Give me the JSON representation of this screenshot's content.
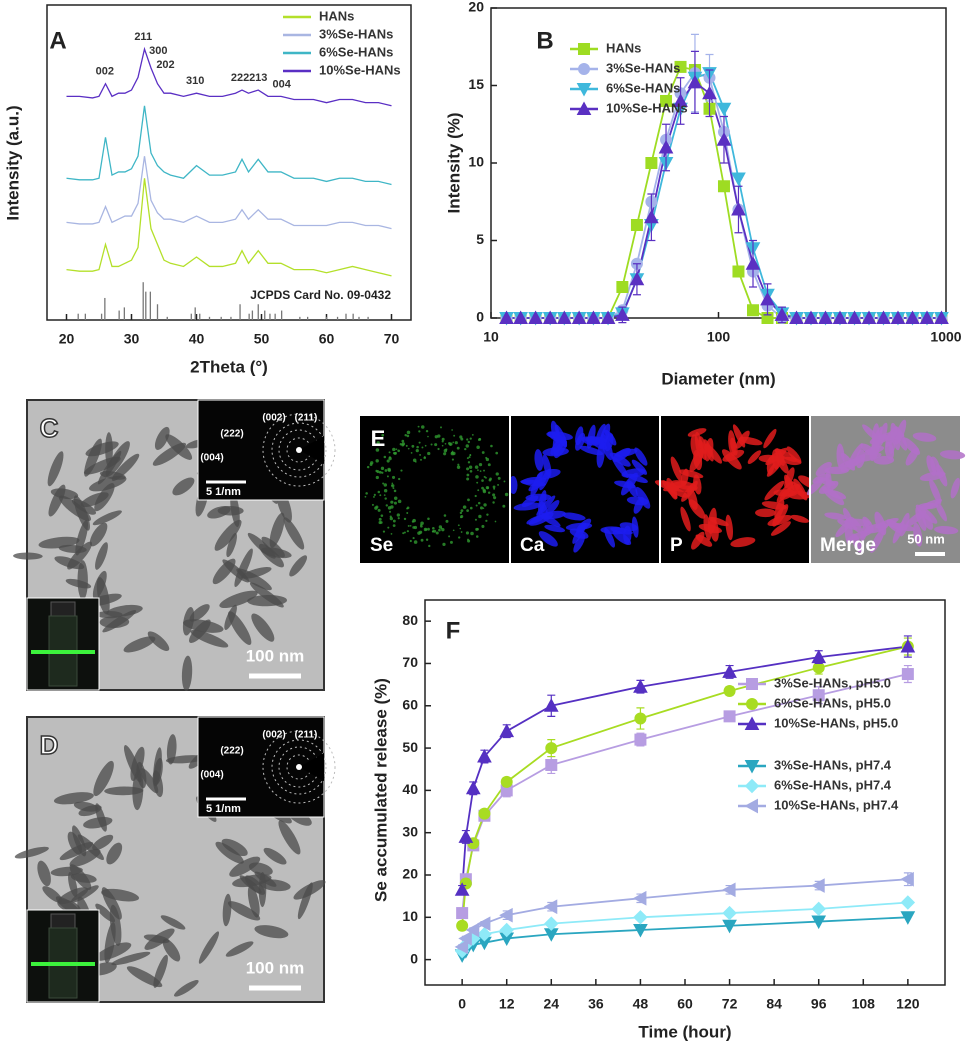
{
  "chart_data": [
    {
      "type": "line",
      "panel_label": "A",
      "xlabel": "2Theta (°)",
      "ylabel": "Intensity (a.u.)",
      "xlim": [
        17,
        73
      ],
      "xticks": [
        20,
        30,
        40,
        50,
        60,
        70
      ],
      "ylim": [
        0,
        100
      ],
      "x": [
        20,
        22,
        24,
        25,
        26,
        27,
        28,
        29,
        30,
        31,
        32,
        33,
        34,
        35,
        36,
        38,
        40,
        42,
        44,
        46,
        47,
        48,
        49.5,
        51,
        53,
        55,
        58,
        60,
        62,
        64,
        66,
        68,
        70
      ],
      "series": [
        {
          "name": "HANs",
          "color": "#b4e02a",
          "values": [
            16,
            15.5,
            15.5,
            16,
            24,
            17,
            17,
            18,
            19,
            23,
            45,
            29,
            24,
            19,
            18,
            17,
            20,
            17,
            17,
            18,
            22,
            18,
            22,
            18,
            18,
            16,
            16,
            15,
            16,
            17,
            16,
            15,
            14
          ]
        },
        {
          "name": "3%Se-HANs",
          "color": "#a9b6e2",
          "values": [
            31,
            30.5,
            30.5,
            31,
            36,
            31,
            32,
            33,
            33,
            37,
            52,
            38,
            34,
            32,
            32,
            31,
            33,
            31,
            31,
            32,
            35,
            32,
            35,
            32,
            32,
            30,
            30,
            30,
            31,
            31,
            30,
            30,
            29
          ]
        },
        {
          "name": "6%Se-HANs",
          "color": "#3fb6c6",
          "values": [
            45,
            44.5,
            44.5,
            45,
            58,
            46,
            47,
            47,
            48,
            52,
            68,
            53,
            49,
            47,
            46,
            45,
            49,
            46,
            46,
            47,
            51,
            47,
            51,
            47,
            47,
            45,
            45,
            44,
            45,
            45,
            44,
            44,
            43
          ]
        },
        {
          "name": "10%Se-HANs",
          "color": "#5a2fc4",
          "values": [
            71,
            71,
            70.5,
            71,
            75,
            71,
            72,
            72,
            73,
            77,
            86,
            80,
            75,
            72,
            72,
            71,
            72,
            71,
            71,
            72,
            73,
            72,
            73,
            71,
            71,
            70,
            70,
            69,
            70,
            70,
            69,
            69,
            68
          ]
        }
      ],
      "reference_peaks": {
        "x": [
          21.8,
          22.9,
          25.4,
          25.9,
          28.1,
          28.9,
          31.8,
          32.2,
          32.9,
          34.0,
          35.5,
          39.2,
          39.8,
          40.5,
          42.0,
          43.8,
          45.3,
          46.7,
          48.1,
          48.6,
          49.5,
          50.5,
          51.3,
          52.1,
          53.1,
          55.9,
          57.1,
          60.0,
          61.7,
          63.0,
          64.1,
          65.0,
          66.4
        ],
        "values": [
          2,
          2,
          2,
          7,
          3,
          4,
          12,
          9,
          9,
          5,
          1,
          2,
          4,
          2,
          1,
          1,
          1,
          5,
          2,
          3,
          5,
          3,
          2,
          2,
          3,
          1,
          1,
          1,
          1,
          2,
          2,
          1,
          1
        ]
      },
      "peak_labels": {
        "labels": [
          "002",
          "211",
          "300",
          "202",
          "310",
          "222",
          "213",
          "004"
        ],
        "x": [
          25.9,
          31.8,
          32.9,
          34.0,
          39.8,
          46.7,
          49.5,
          53.1
        ]
      },
      "annotation": "JCPDS Card No. 09-0432"
    },
    {
      "type": "line",
      "panel_label": "B",
      "xlabel": "Diameter (nm)",
      "ylabel": "Intensity (%)",
      "xscale": "log",
      "xlim": [
        10,
        1000
      ],
      "xticks": [
        10,
        100,
        1000
      ],
      "ylim": [
        0,
        20
      ],
      "yticks": [
        0,
        5,
        10,
        15,
        20
      ],
      "x": [
        11.7,
        13.5,
        15.7,
        18.2,
        21.0,
        24.4,
        28.2,
        32.7,
        37.8,
        43.8,
        50.7,
        58.8,
        68.1,
        78.8,
        91.3,
        105.7,
        122.4,
        141.8,
        164.2,
        190.1,
        220.2,
        255.0,
        295.3,
        342.0,
        396.1,
        458.7,
        531.2,
        615.1,
        712.4,
        825.0,
        955.4
      ],
      "series": [
        {
          "name": "HANs",
          "color": "#9edc22",
          "marker": "square",
          "values": [
            0,
            0,
            0,
            0,
            0,
            0,
            0,
            0,
            2,
            6,
            10,
            14,
            16.2,
            16,
            13.5,
            8.5,
            3,
            0.5,
            0,
            0,
            0,
            0,
            0,
            0,
            0,
            0,
            0,
            0,
            0,
            0,
            0
          ]
        },
        {
          "name": "3%Se-HANs",
          "color": "#a5b3ea",
          "marker": "circle",
          "values": [
            0,
            0,
            0,
            0,
            0,
            0,
            0,
            0,
            0.5,
            3.5,
            7.5,
            11.5,
            14.5,
            15.8,
            15.5,
            12,
            7,
            3,
            0.8,
            0,
            0,
            0,
            0,
            0,
            0,
            0,
            0,
            0,
            0,
            0,
            0
          ],
          "errors": [
            null,
            null,
            null,
            null,
            null,
            null,
            null,
            null,
            null,
            null,
            null,
            null,
            null,
            2.5,
            1.5,
            null,
            null,
            null,
            null,
            null,
            null,
            null,
            null,
            null,
            null,
            null,
            null,
            null,
            null,
            null,
            null
          ]
        },
        {
          "name": "6%Se-HANs",
          "color": "#3fb8dc",
          "marker": "triangle-down",
          "values": [
            0,
            0,
            0,
            0,
            0,
            0,
            0,
            0,
            0.3,
            2.5,
            6,
            10,
            13.5,
            15.5,
            15.8,
            13.5,
            9,
            4.5,
            1.5,
            0.3,
            0,
            0,
            0,
            0,
            0,
            0,
            0,
            0,
            0,
            0,
            0
          ]
        },
        {
          "name": "10%Se-HANs",
          "color": "#5a30c2",
          "marker": "triangle-up",
          "values": [
            0,
            0,
            0,
            0,
            0,
            0,
            0,
            0,
            0.2,
            2.5,
            6.5,
            11,
            14,
            15.2,
            14.5,
            11.5,
            7,
            3.5,
            1.2,
            0.2,
            0,
            0,
            0,
            0,
            0,
            0,
            0,
            0,
            0,
            0,
            0
          ],
          "errors": [
            null,
            null,
            null,
            null,
            null,
            null,
            null,
            null,
            0.5,
            1,
            1.5,
            1.5,
            1.5,
            2,
            1.5,
            1.5,
            1.5,
            1.5,
            1,
            0.5,
            null,
            null,
            null,
            null,
            null,
            null,
            null,
            null,
            null,
            null,
            null
          ]
        }
      ]
    },
    {
      "type": "line",
      "panel_label": "F",
      "xlabel": "Time (hour)",
      "ylabel": "Se accumulated release (%)",
      "xlim": [
        -10,
        130
      ],
      "xticks": [
        0,
        12,
        24,
        36,
        48,
        60,
        72,
        84,
        96,
        108,
        120
      ],
      "ylim": [
        -6,
        85
      ],
      "yticks": [
        0,
        10,
        20,
        30,
        40,
        50,
        60,
        70,
        80
      ],
      "x": [
        0,
        1,
        3,
        6,
        12,
        24,
        48,
        72,
        96,
        120
      ],
      "series": [
        {
          "name": "3%Se-HANs, pH5.0",
          "color": "#b79de2",
          "marker": "square",
          "values": [
            11,
            19,
            27,
            34,
            40,
            46,
            52,
            57.5,
            62.5,
            67.5
          ],
          "errors": [
            1,
            1,
            1,
            1,
            1.5,
            2,
            1.5,
            1,
            2,
            2
          ]
        },
        {
          "name": "6%Se-HANs, pH5.0",
          "color": "#a8dc22",
          "marker": "circle",
          "values": [
            8,
            18,
            27.5,
            34.5,
            42,
            50,
            57,
            63.5,
            69,
            74
          ],
          "errors": [
            1,
            1,
            1,
            1,
            1,
            2,
            2.5,
            1,
            1.5,
            2
          ]
        },
        {
          "name": "10%Se-HANs, pH5.0",
          "color": "#5530c2",
          "marker": "triangle-up",
          "values": [
            16.5,
            29,
            40.5,
            48,
            54,
            60,
            64.5,
            68,
            71.5,
            74
          ],
          "errors": [
            1,
            1.5,
            1.5,
            1.5,
            1.5,
            2.5,
            1.5,
            1.5,
            1.5,
            2.5
          ]
        },
        {
          "name": "3%Se-HANs, pH7.4",
          "color": "#2aa6c0",
          "marker": "triangle-down",
          "values": [
            1,
            2,
            3.5,
            4,
            5,
            6,
            7,
            8,
            9,
            10
          ]
        },
        {
          "name": "6%Se-HANs, pH7.4",
          "color": "#8eeaf8",
          "marker": "diamond",
          "values": [
            2,
            3.5,
            5,
            6,
            7,
            8.5,
            10,
            11,
            12,
            13.5
          ]
        },
        {
          "name": "10%Se-HANs, pH7.4",
          "color": "#a3abe2",
          "marker": "triangle-left",
          "values": [
            3,
            5,
            7,
            8.5,
            10.5,
            12.5,
            14.5,
            16.5,
            17.5,
            19
          ],
          "errors": [
            0.5,
            0.5,
            0.5,
            0.5,
            1,
            1,
            1,
            1,
            1,
            1.5
          ]
        }
      ]
    }
  ],
  "images": [
    {
      "label": "C",
      "diffraction_labels": [
        "(004)",
        "(222)",
        "(002)",
        "(211)"
      ],
      "diffraction_scale": "5 1/nm",
      "scale_bar": "100 nm"
    },
    {
      "label": "D",
      "diffraction_labels": [
        "(004)",
        "(222)",
        "(002)",
        "(211)"
      ],
      "diffraction_scale": "5 1/nm",
      "scale_bar": "100 nm"
    }
  ],
  "mapping": {
    "label": "E",
    "channels": [
      "Se",
      "Ca",
      "P",
      "Merge"
    ],
    "scale_bar": "50 nm"
  }
}
